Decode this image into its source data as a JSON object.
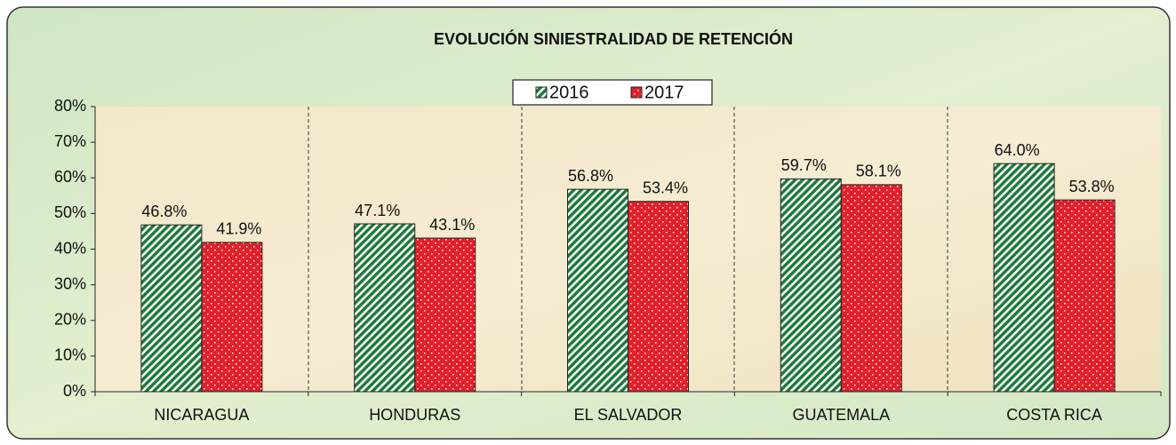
{
  "chart_data": {
    "type": "bar",
    "title": "EVOLUCIÓN SINIESTRALIDAD DE RETENCIÓN",
    "categories": [
      "NICARAGUA",
      "HONDURAS",
      "EL SALVADOR",
      "GUATEMALA",
      "COSTA RICA"
    ],
    "series": [
      {
        "name": "2016",
        "color": "#1f7a3c",
        "values": [
          46.8,
          47.1,
          56.8,
          59.7,
          64.0
        ],
        "value_labels": [
          "46.8%",
          "47.1%",
          "56.8%",
          "59.7%",
          "64.0%"
        ]
      },
      {
        "name": "2017",
        "color": "#e3202a",
        "values": [
          41.9,
          43.1,
          53.4,
          58.1,
          53.8
        ],
        "value_labels": [
          "41.9%",
          "43.1%",
          "53.4%",
          "58.1%",
          "53.8%"
        ]
      }
    ],
    "ylim": [
      0,
      80
    ],
    "yticks": [
      {
        "value": 0,
        "label": "0%"
      },
      {
        "value": 10,
        "label": "10%"
      },
      {
        "value": 20,
        "label": "20%"
      },
      {
        "value": 30,
        "label": "30%"
      },
      {
        "value": 40,
        "label": "40%"
      },
      {
        "value": 50,
        "label": "50%"
      },
      {
        "value": 60,
        "label": "60%"
      },
      {
        "value": 70,
        "label": "70%"
      },
      {
        "value": 80,
        "label": "80%"
      }
    ],
    "grid": false,
    "legend": "top"
  }
}
